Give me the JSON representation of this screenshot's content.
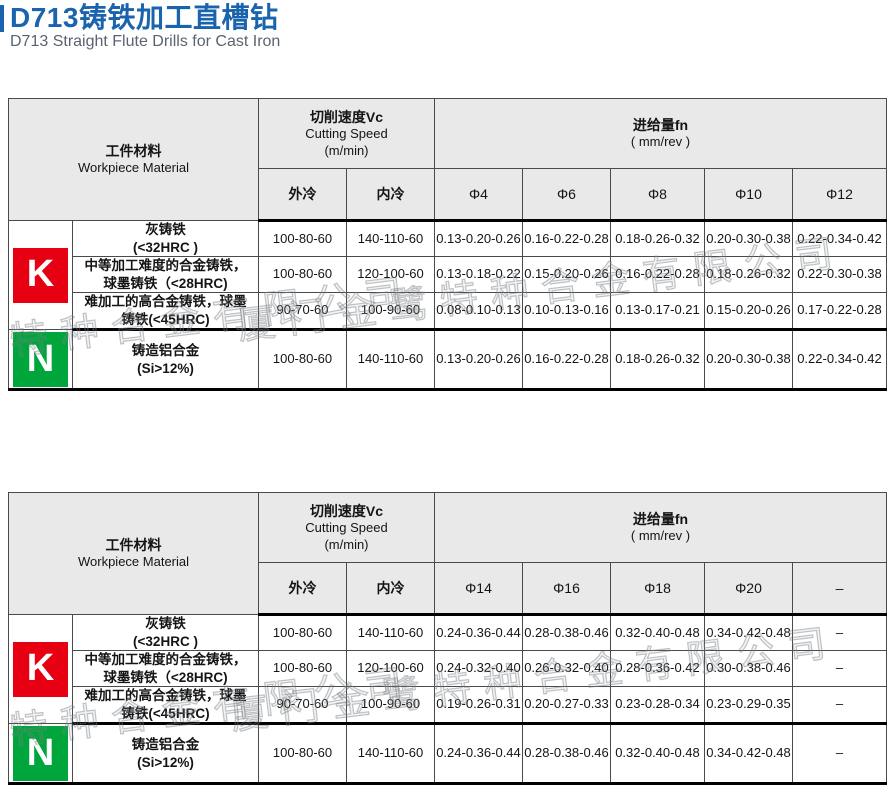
{
  "page": {
    "title": "D713铸铁加工直槽钻",
    "subtitle": "D713 Straight Flute Drills for Cast Iron",
    "watermark_text": "厦门金鹭特种合金有限公司"
  },
  "colors": {
    "accent_blue": "#1a64ad",
    "k_red": "#e60012",
    "n_green": "#00a63c",
    "header_bg": "#e8e9e8"
  },
  "header_labels": {
    "workpiece_zh": "工件材料",
    "workpiece_en": "Workpiece Material",
    "cutting_speed_zh": "切削速度Vc",
    "cutting_speed_en": "Cutting Speed",
    "cutting_speed_unit": "(m/min)",
    "feed_zh": "进给量fn",
    "feed_unit": "( mm/rev )",
    "coolant_external": "外冷",
    "coolant_internal": "内冷"
  },
  "badges": {
    "K": {
      "label": "K",
      "color": "#e60012"
    },
    "N": {
      "label": "N",
      "color": "#00a63c"
    }
  },
  "tables": [
    {
      "diameters": [
        "Φ4",
        "Φ6",
        "Φ8",
        "Φ10",
        "Φ12"
      ],
      "rows": [
        {
          "group": "K",
          "material": "灰铸铁\n(<32HRC )",
          "speed_ext": "100-80-60",
          "speed_int": "140-110-60",
          "feeds": [
            "0.13-0.20-0.26",
            "0.16-0.22-0.28",
            "0.18-0.26-0.32",
            "0.20-0.30-0.38",
            "0.22-0.34-0.42"
          ]
        },
        {
          "group": "K",
          "material": "中等加工难度的合金铸铁，\n球墨铸铁（<28HRC)",
          "speed_ext": "100-80-60",
          "speed_int": "120-100-60",
          "feeds": [
            "0.13-0.18-0.22",
            "0.15-0.20-0.26",
            "0.16-0.22-0.28",
            "0.18-0.26-0.32",
            "0.22-0.30-0.38"
          ]
        },
        {
          "group": "K",
          "material": "难加工的高合金铸铁，球墨\n铸铁(<45HRC)",
          "speed_ext": "90-70-60",
          "speed_int": "100-90-60",
          "feeds": [
            "0.08-0.10-0.13",
            "0.10-0.13-0.16",
            "0.13-0.17-0.21",
            "0.15-0.20-0.26",
            "0.17-0.22-0.28"
          ]
        },
        {
          "group": "N",
          "material": "铸造铝合金\n(Si>12%)",
          "speed_ext": "100-80-60",
          "speed_int": "140-110-60",
          "feeds": [
            "0.13-0.20-0.26",
            "0.16-0.22-0.28",
            "0.18-0.26-0.32",
            "0.20-0.30-0.38",
            "0.22-0.34-0.42"
          ]
        }
      ]
    },
    {
      "diameters": [
        "Φ14",
        "Φ16",
        "Φ18",
        "Φ20",
        "–"
      ],
      "rows": [
        {
          "group": "K",
          "material": "灰铸铁\n(<32HRC )",
          "speed_ext": "100-80-60",
          "speed_int": "140-110-60",
          "feeds": [
            "0.24-0.36-0.44",
            "0.28-0.38-0.46",
            "0.32-0.40-0.48",
            "0.34-0.42-0.48",
            "–"
          ]
        },
        {
          "group": "K",
          "material": "中等加工难度的合金铸铁，\n球墨铸铁（<28HRC)",
          "speed_ext": "100-80-60",
          "speed_int": "120-100-60",
          "feeds": [
            "0.24-0.32-0.40",
            "0.26-0.32-0.40",
            "0.28-0.36-0.42",
            "0.30-0.38-0.46",
            "–"
          ]
        },
        {
          "group": "K",
          "material": "难加工的高合金铸铁，球墨\n铸铁(<45HRC)",
          "speed_ext": "90-70-60",
          "speed_int": "100-90-60",
          "feeds": [
            "0.19-0.26-0.31",
            "0.20-0.27-0.33",
            "0.23-0.28-0.34",
            "0.23-0.29-0.35",
            "–"
          ]
        },
        {
          "group": "N",
          "material": "铸造铝合金\n(Si>12%)",
          "speed_ext": "100-80-60",
          "speed_int": "140-110-60",
          "feeds": [
            "0.24-0.36-0.44",
            "0.28-0.38-0.46",
            "0.32-0.40-0.48",
            "0.34-0.42-0.48",
            "–"
          ]
        }
      ]
    }
  ]
}
